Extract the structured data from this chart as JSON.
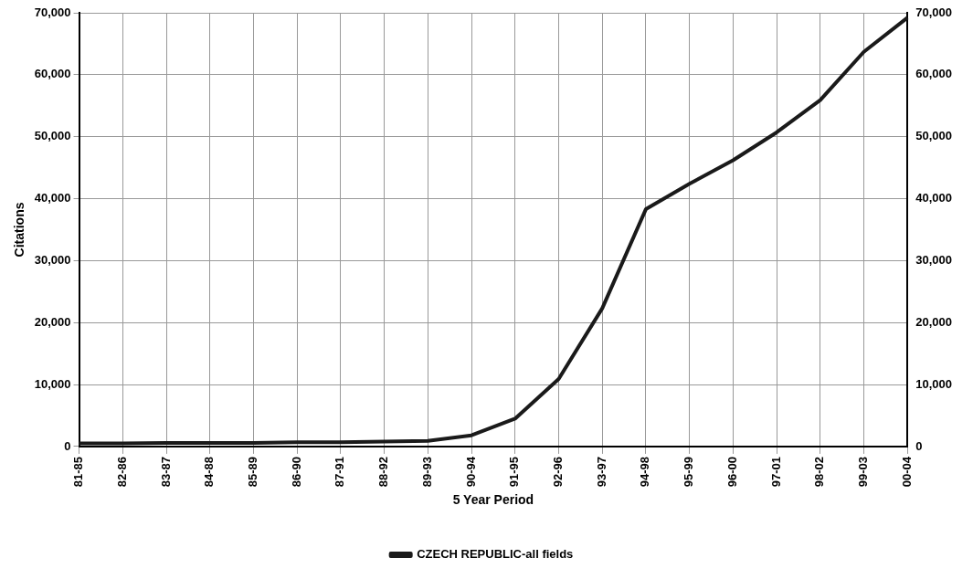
{
  "chart_data": {
    "type": "line",
    "xlabel": "5 Year Period",
    "ylabel": "Citations",
    "categories": [
      "81-85",
      "82-86",
      "83-87",
      "84-88",
      "85-89",
      "86-90",
      "87-91",
      "88-92",
      "89-93",
      "90-94",
      "91-95",
      "92-96",
      "93-97",
      "94-98",
      "95-99",
      "96-00",
      "97-01",
      "98-02",
      "99-03",
      "00-04"
    ],
    "series": [
      {
        "name": "CZECH REPUBLIC-all fields",
        "color": "#1a1a1a",
        "values": [
          500,
          500,
          600,
          600,
          600,
          700,
          700,
          800,
          900,
          1800,
          4500,
          10900,
          22300,
          38300,
          42400,
          46200,
          50700,
          55900,
          63700,
          69200
        ]
      }
    ],
    "ylim": [
      0,
      70000
    ],
    "yticks": [
      {
        "value": 0,
        "label": "0"
      },
      {
        "value": 10000,
        "label": "10,000"
      },
      {
        "value": 20000,
        "label": "20,000"
      },
      {
        "value": 30000,
        "label": "30,000"
      },
      {
        "value": 40000,
        "label": "40,000"
      },
      {
        "value": 50000,
        "label": "50,000"
      },
      {
        "value": 60000,
        "label": "60,000"
      },
      {
        "value": 70000,
        "label": "70,000"
      }
    ],
    "y2lim": [
      0,
      70000
    ],
    "y2ticks": [
      {
        "value": 0,
        "label": "0"
      },
      {
        "value": 10000,
        "label": "10,000"
      },
      {
        "value": 20000,
        "label": "20,000"
      },
      {
        "value": 30000,
        "label": "30,000"
      },
      {
        "value": 40000,
        "label": "40,000"
      },
      {
        "value": 50000,
        "label": "50,000"
      },
      {
        "value": 60000,
        "label": "60,000"
      },
      {
        "value": 70000,
        "label": "70,000"
      }
    ],
    "grid": true,
    "legend": "bottom",
    "marker": "none",
    "line_style": "solid"
  }
}
